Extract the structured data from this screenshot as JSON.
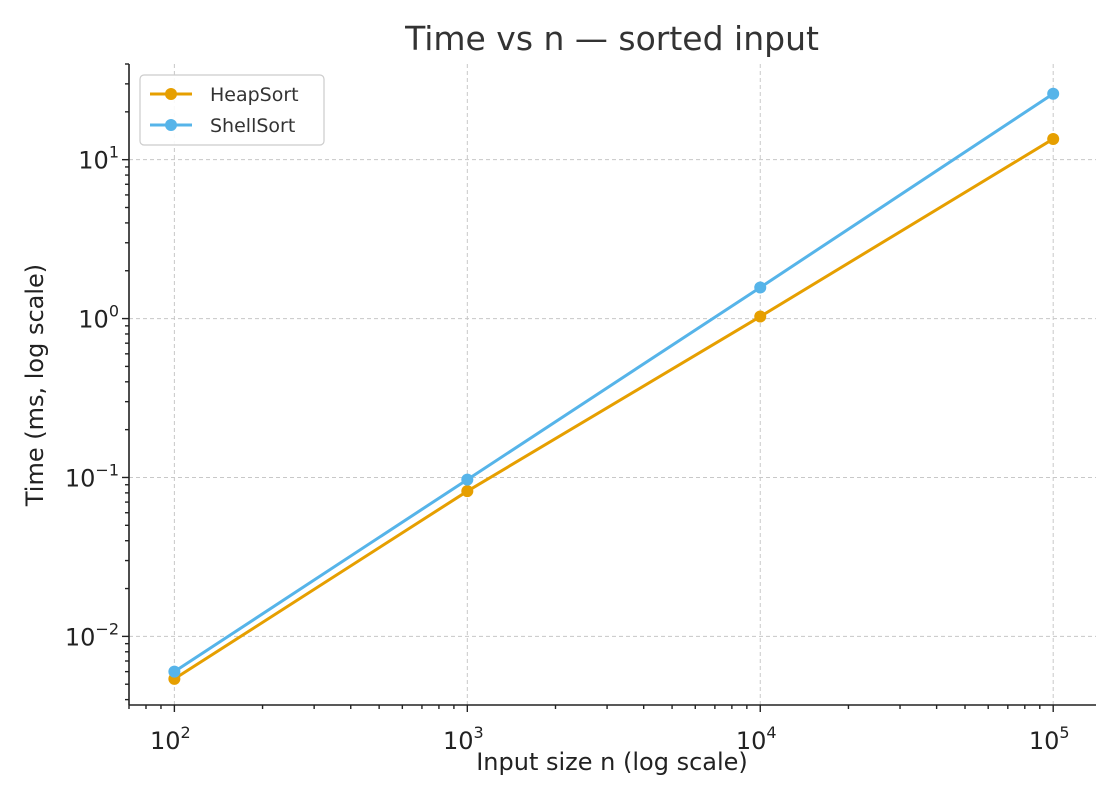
{
  "chart_data": {
    "type": "line",
    "title": "Time vs n — sorted input",
    "xlabel": "Input size n (log scale)",
    "ylabel": "Time (ms, log scale)",
    "x_scale": "log",
    "y_scale": "log",
    "xlim": [
      70,
      140000
    ],
    "ylim": [
      0.0037,
      40
    ],
    "x_ticks": [
      {
        "value": 100,
        "base": "10",
        "exp": "2"
      },
      {
        "value": 1000,
        "base": "10",
        "exp": "3"
      },
      {
        "value": 10000,
        "base": "10",
        "exp": "4"
      },
      {
        "value": 100000,
        "base": "10",
        "exp": "5"
      }
    ],
    "y_ticks": [
      {
        "value": 0.01,
        "base": "10",
        "exp": "−2"
      },
      {
        "value": 0.1,
        "base": "10",
        "exp": "−1"
      },
      {
        "value": 1,
        "base": "10",
        "exp": "0"
      },
      {
        "value": 10,
        "base": "10",
        "exp": "1"
      }
    ],
    "grid": true,
    "legend_position": "top-left",
    "x": [
      100,
      1000,
      10000,
      100000
    ],
    "series": [
      {
        "name": "HeapSort",
        "color": "#E69F00",
        "values": [
          0.0054,
          0.082,
          1.03,
          13.5
        ]
      },
      {
        "name": "ShellSort",
        "color": "#56B4E9",
        "values": [
          0.006,
          0.097,
          1.57,
          26.0
        ]
      }
    ]
  }
}
